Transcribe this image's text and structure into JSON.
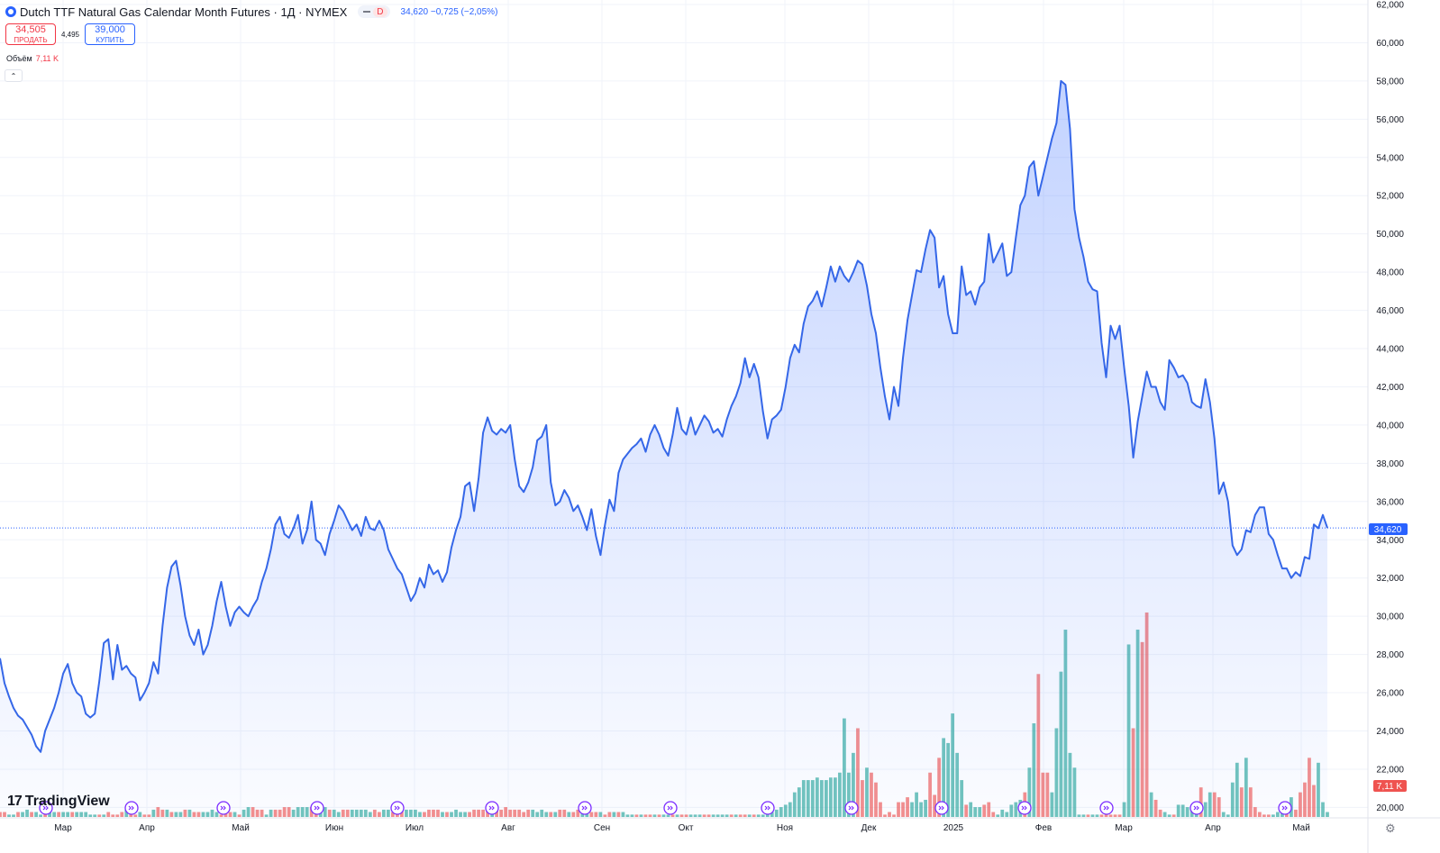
{
  "header": {
    "title": "Dutch TTF Natural Gas Calendar Month Futures · 1Д · NYMEX",
    "badge": "D",
    "quote": "34,620  −0,725 (−2,05%)"
  },
  "trade": {
    "sell_price": "34,505",
    "sell_label": "ПРОДАТЬ",
    "spread": "4,495",
    "buy_price": "39,000",
    "buy_label": "КУПИТЬ"
  },
  "volume": {
    "label": "Объём",
    "value": "7,11 K"
  },
  "logo": {
    "text": "TradingView",
    "mark": "17"
  },
  "colors": {
    "line": "#3567e8",
    "fill": "#2962ff",
    "vol_up": "#26a69a",
    "vol_down": "#ef5350",
    "grid": "#f0f3fa",
    "price_tag": "#2962ff"
  },
  "chart_data": {
    "type": "area",
    "x_tick_labels": [
      "Мар",
      "Апр",
      "Май",
      "Июн",
      "Июл",
      "Авг",
      "Сен",
      "Окт",
      "Ноя",
      "Дек",
      "2025",
      "Фев",
      "Мар",
      "Апр",
      "Май"
    ],
    "y_tick_labels": [
      "20,000",
      "22,000",
      "24,000",
      "26,000",
      "28,000",
      "30,000",
      "32,000",
      "34,000",
      "36,000",
      "38,000",
      "40,000",
      "42,000",
      "44,000",
      "46,000",
      "48,000",
      "50,000",
      "52,000",
      "54,000",
      "56,000",
      "58,000",
      "60,000",
      "62,000"
    ],
    "ylim": [
      19.5,
      62.0
    ],
    "last_price_label": "34,620",
    "last_price": 34.62,
    "volume_tag": "7,11 K",
    "series": [
      {
        "values": [
          27.8,
          26.5,
          25.8,
          25.2,
          24.8,
          24.6,
          24.2,
          23.8,
          23.2,
          22.9,
          24.0,
          24.6,
          25.2,
          26.0,
          27.0,
          27.5,
          26.5,
          26.0,
          25.8,
          24.9,
          24.7,
          24.9,
          26.6,
          28.6,
          28.8,
          26.7,
          28.5,
          27.2,
          27.4,
          27.0,
          26.8,
          25.6,
          26.0,
          26.5,
          27.6,
          27.0,
          29.5,
          31.5,
          32.6,
          32.9,
          31.6,
          30.0,
          29.0,
          28.5,
          29.3,
          28.0,
          28.5,
          29.5,
          30.8,
          31.8,
          30.5,
          29.5,
          30.2,
          30.5,
          30.2,
          30.0,
          30.5,
          30.9,
          31.8,
          32.5,
          33.5,
          34.8,
          35.2,
          34.3,
          34.1,
          34.6,
          35.3,
          33.8,
          34.5,
          36.0,
          34.0,
          33.8,
          33.2,
          34.3,
          35.0,
          35.8,
          35.5,
          35.0,
          34.5,
          34.8,
          34.2,
          35.2,
          34.6,
          34.5,
          35.0,
          34.5,
          33.5,
          33.0,
          32.5,
          32.2,
          31.5,
          30.8,
          31.2,
          32.0,
          31.5,
          32.7,
          32.2,
          32.4,
          31.8,
          32.3,
          33.6,
          34.5,
          35.2,
          36.8,
          37.0,
          35.5,
          37.2,
          39.6,
          40.4,
          39.7,
          39.5,
          39.8,
          39.6,
          40.0,
          38.2,
          36.8,
          36.5,
          37.0,
          37.8,
          39.2,
          39.4,
          40.0,
          37.0,
          35.8,
          36.0,
          36.6,
          36.2,
          35.5,
          35.8,
          35.2,
          34.5,
          35.6,
          34.2,
          33.2,
          34.8,
          36.1,
          35.5,
          37.5,
          38.2,
          38.5,
          38.8,
          39.0,
          39.3,
          38.6,
          39.5,
          40.0,
          39.5,
          38.8,
          38.4,
          39.5,
          40.9,
          39.8,
          39.5,
          40.4,
          39.5,
          40.0,
          40.5,
          40.2,
          39.6,
          39.8,
          39.4,
          40.3,
          41.0,
          41.5,
          42.2,
          43.5,
          42.5,
          43.2,
          42.5,
          40.7,
          39.3,
          40.3,
          40.5,
          40.8,
          42.0,
          43.5,
          44.2,
          43.8,
          45.3,
          46.2,
          46.5,
          47.0,
          46.2,
          47.2,
          48.3,
          47.5,
          48.3,
          47.8,
          47.5,
          48.0,
          48.6,
          48.4,
          47.3,
          45.8,
          44.8,
          43.0,
          41.5,
          40.3,
          42.0,
          41.0,
          43.5,
          45.5,
          46.8,
          48.1,
          48.0,
          49.2,
          50.2,
          49.8,
          47.2,
          47.8,
          45.8,
          44.8,
          44.8,
          48.3,
          46.8,
          47.0,
          46.3,
          47.2,
          47.5,
          50.0,
          48.5,
          49.0,
          49.5,
          47.8,
          48.0,
          49.8,
          51.5,
          52.0,
          53.5,
          53.8,
          52.0,
          53.0,
          54.0,
          55.0,
          55.8,
          58.0,
          57.8,
          55.5,
          51.3,
          49.8,
          48.8,
          47.5,
          47.1,
          47.0,
          44.3,
          42.5,
          45.2,
          44.5,
          45.2,
          43.0,
          41.0,
          38.3,
          40.2,
          41.5,
          42.8,
          42.0,
          42.0,
          41.2,
          40.8,
          43.4,
          43.0,
          42.5,
          42.6,
          42.2,
          41.2,
          41.0,
          40.9,
          42.4,
          41.2,
          39.3,
          36.4,
          37.0,
          36.0,
          33.7,
          33.2,
          33.5,
          34.5,
          34.4,
          35.3,
          35.7,
          35.7,
          34.3,
          34.0,
          33.2,
          32.5,
          32.5,
          32.0,
          32.3,
          32.1,
          33.1,
          33.0,
          34.8,
          34.6,
          35.3,
          34.62
        ]
      },
      {
        "name": "Объём",
        "values": [
          0.25,
          0.25,
          0.12,
          0.12,
          0.25,
          0.25,
          0.37,
          0.25,
          0.25,
          0.12,
          0.25,
          0.25,
          0.25,
          0.25,
          0.25,
          0.25,
          0.25,
          0.25,
          0.25,
          0.25,
          0.12,
          0.12,
          0.12,
          0.12,
          0.25,
          0.12,
          0.12,
          0.25,
          0.37,
          0.25,
          0.12,
          0.25,
          0.12,
          0.12,
          0.37,
          0.5,
          0.37,
          0.37,
          0.25,
          0.25,
          0.25,
          0.37,
          0.37,
          0.25,
          0.25,
          0.25,
          0.25,
          0.37,
          0.25,
          0.12,
          0.25,
          0.25,
          0.25,
          0.12,
          0.37,
          0.5,
          0.5,
          0.37,
          0.37,
          0.12,
          0.37,
          0.37,
          0.37,
          0.5,
          0.5,
          0.37,
          0.5,
          0.5,
          0.5,
          0.5,
          0.37,
          0.37,
          0.5,
          0.37,
          0.37,
          0.25,
          0.37,
          0.37,
          0.37,
          0.37,
          0.37,
          0.37,
          0.25,
          0.37,
          0.25,
          0.37,
          0.37,
          0.25,
          0.5,
          0.37,
          0.37,
          0.37,
          0.37,
          0.25,
          0.25,
          0.37,
          0.37,
          0.37,
          0.25,
          0.25,
          0.25,
          0.37,
          0.25,
          0.25,
          0.25,
          0.37,
          0.37,
          0.37,
          0.37,
          0.5,
          0.37,
          0.37,
          0.5,
          0.37,
          0.37,
          0.37,
          0.25,
          0.37,
          0.37,
          0.25,
          0.37,
          0.25,
          0.25,
          0.25,
          0.37,
          0.37,
          0.25,
          0.25,
          0.37,
          0.25,
          0.37,
          0.25,
          0.25,
          0.25,
          0.12,
          0.25,
          0.25,
          0.25,
          0.25,
          0.12,
          0.12,
          0.12,
          0.12,
          0.12,
          0.12,
          0.12,
          0.12,
          0.12,
          0.12,
          0.12,
          0.12,
          0.12,
          0.12,
          0.12,
          0.12,
          0.12,
          0.12,
          0.12,
          0.12,
          0.12,
          0.12,
          0.12,
          0.12,
          0.12,
          0.12,
          0.12,
          0.12,
          0.12,
          0.12,
          0.12,
          0.25,
          0.25,
          0.37,
          0.5,
          0.62,
          0.75,
          1.25,
          1.5,
          1.87,
          1.87,
          1.87,
          2.0,
          1.87,
          1.87,
          2.0,
          2.0,
          2.25,
          5.0,
          2.25,
          3.25,
          4.5,
          1.87,
          2.5,
          2.25,
          1.75,
          0.75,
          0.12,
          0.25,
          0.12,
          0.75,
          0.75,
          1.0,
          0.75,
          1.25,
          0.75,
          0.87,
          2.25,
          1.12,
          3.0,
          4.0,
          3.75,
          5.25,
          3.25,
          1.87,
          0.62,
          0.75,
          0.5,
          0.5,
          0.62,
          0.75,
          0.25,
          0.12,
          0.37,
          0.25,
          0.62,
          0.75,
          0.87,
          1.25,
          2.5,
          4.75,
          7.25,
          2.25,
          2.25,
          1.25,
          4.5,
          7.37,
          9.5,
          3.25,
          2.5,
          0.12,
          0.12,
          0.12,
          0.12,
          0.12,
          0.12,
          0.12,
          0.12,
          0.12,
          0.12,
          0.75,
          8.75,
          4.5,
          9.5,
          8.87,
          10.37,
          1.25,
          0.87,
          0.37,
          0.25,
          0.12,
          0.12,
          0.62,
          0.62,
          0.5,
          0.5,
          0.37,
          1.5,
          0.75,
          1.25,
          1.25,
          1.0,
          0.25,
          0.12,
          1.75,
          2.75,
          1.5,
          3.0,
          1.5,
          0.5,
          0.25,
          0.12,
          0.12,
          0.12,
          0.25,
          0.75,
          0.5,
          1.0,
          0.37,
          1.25,
          1.75,
          3.0,
          1.62,
          2.75,
          0.75,
          0.25,
          0.12,
          1.5,
          2.75,
          2.5,
          2.75,
          0.5,
          0.25,
          0.5,
          1.0,
          1.0,
          0.5,
          5.75,
          2.37,
          0.75
        ]
      }
    ],
    "volume_colors": "DDUUDUUDUUDUUDUUDUUUUUDUDDDDUDDUDDUDDUDUUDUDDUUUUDDDUDUUDDDUUDDDDUUUUDDUUDUUDDUUUUUDDUUDDDUUUUDDDDUDUUUUDDDDDUDDDDDDDDUUUUDUDDUDDUUDDUDDUDUUUDUDDUDUUDUDDUUUDDUUUUDUDDUDUUUUUUUUUUUUUUUUUUUUUUDDUDDDDDDDDDUUUUDDDUUUUUDUUUDDDUUUUUUDUUDDDUUUUUUUUDUUDDDDDUUDUDDUDDUUDUUUUUDUUDDUUUUDUDDDDDUUUDUDDDDDUUUUDDUDUDDDUUUUUUUUUDD"
  }
}
